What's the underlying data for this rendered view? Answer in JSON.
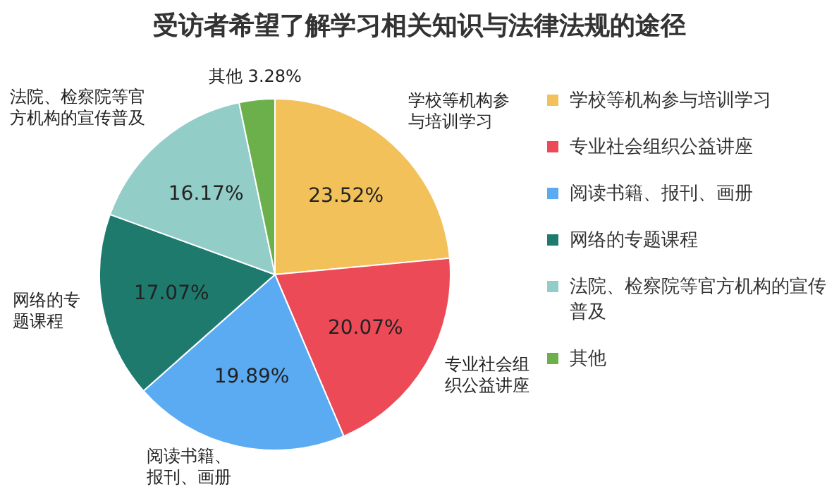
{
  "chart_data": {
    "type": "pie",
    "title": "受访者希望了解学习相关知识与法律法规的途径",
    "categories": [
      "学校等机构参与培训学习",
      "专业社会组织公益讲座",
      "阅读书籍、报刊、画册",
      "网络的专题课程",
      "法院、检察院等官方机构的宣传普及",
      "其他"
    ],
    "values": [
      23.52,
      20.07,
      19.89,
      17.07,
      16.17,
      3.28
    ],
    "value_labels": [
      "23.52%",
      "20.07%",
      "19.89%",
      "17.07%",
      "16.17%",
      "3.28%"
    ],
    "colors": [
      "#f2c15a",
      "#ec4a57",
      "#5aabf2",
      "#1f7a6e",
      "#93cdc8",
      "#6bb04a"
    ],
    "legend": "right",
    "annotations": [
      "学校等机构参与培训学习",
      "专业社会组织公益讲座",
      "阅读书籍、报刊、画册",
      "网络的专题课程",
      "法院、检察院等官方机构的宣传普及",
      "其他"
    ]
  }
}
